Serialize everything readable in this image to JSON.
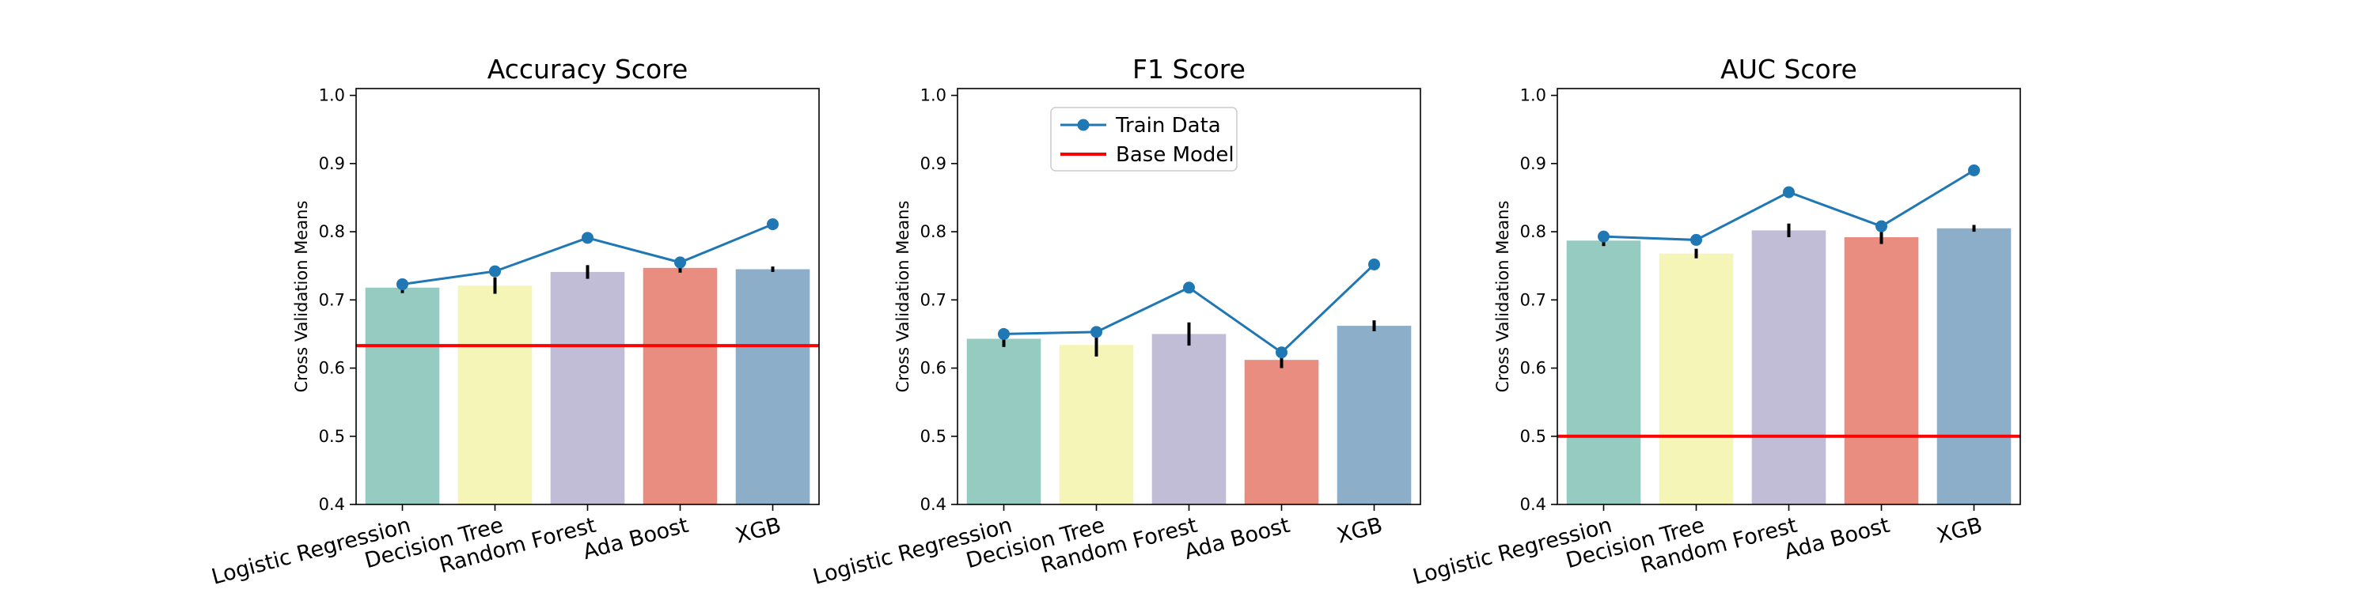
{
  "chart_data": [
    {
      "type": "bar",
      "title": "Accuracy Score",
      "ylabel": "Cross Validation Means",
      "xlabel": "",
      "ylim": [
        0.4,
        1.01
      ],
      "yticks": [
        "0.4",
        "0.5",
        "0.6",
        "0.7",
        "0.8",
        "0.9",
        "1.0"
      ],
      "categories": [
        "Logistic Regression",
        "Decision Tree",
        "Random Forest",
        "Ada Boost",
        "XGB"
      ],
      "bar_colors": [
        "#96cbc1",
        "#f5f5b8",
        "#c1bdd7",
        "#e98d81",
        "#8caec9"
      ],
      "values": [
        0.718,
        0.721,
        0.741,
        0.747,
        0.745
      ],
      "errors": [
        0.008,
        0.012,
        0.01,
        0.007,
        0.004
      ],
      "series": [
        {
          "name": "Train Data",
          "type": "line",
          "color": "#1f77b4",
          "values": [
            0.723,
            0.742,
            0.791,
            0.755,
            0.811
          ]
        },
        {
          "name": "Base Model",
          "type": "hline",
          "color": "#ff0000",
          "value": 0.633
        }
      ],
      "legend": null,
      "grid": false
    },
    {
      "type": "bar",
      "title": "F1 Score",
      "ylabel": "Cross Validation Means",
      "xlabel": "",
      "ylim": [
        0.4,
        1.01
      ],
      "yticks": [
        "0.4",
        "0.5",
        "0.6",
        "0.7",
        "0.8",
        "0.9",
        "1.0"
      ],
      "categories": [
        "Logistic Regression",
        "Decision Tree",
        "Random Forest",
        "Ada Boost",
        "XGB"
      ],
      "bar_colors": [
        "#96cbc1",
        "#f5f5b8",
        "#c1bdd7",
        "#e98d81",
        "#8caec9"
      ],
      "values": [
        0.643,
        0.634,
        0.65,
        0.612,
        0.662
      ],
      "errors": [
        0.012,
        0.017,
        0.017,
        0.012,
        0.008
      ],
      "series": [
        {
          "name": "Train Data",
          "type": "line",
          "color": "#1f77b4",
          "values": [
            0.65,
            0.653,
            0.718,
            0.623,
            0.752
          ]
        },
        {
          "name": "Base Model",
          "type": "hline",
          "color": "#ff0000",
          "value": null
        }
      ],
      "legend": {
        "placement": "upper-center",
        "entries": [
          "Train Data",
          "Base Model"
        ]
      },
      "grid": false
    },
    {
      "type": "bar",
      "title": "AUC Score",
      "ylabel": "Cross Validation Means",
      "xlabel": "",
      "ylim": [
        0.4,
        1.01
      ],
      "yticks": [
        "0.4",
        "0.5",
        "0.6",
        "0.7",
        "0.8",
        "0.9",
        "1.0"
      ],
      "categories": [
        "Logistic Regression",
        "Decision Tree",
        "Random Forest",
        "Ada Boost",
        "XGB"
      ],
      "bar_colors": [
        "#96cbc1",
        "#f5f5b8",
        "#c1bdd7",
        "#e98d81",
        "#8caec9"
      ],
      "values": [
        0.787,
        0.768,
        0.802,
        0.792,
        0.805
      ],
      "errors": [
        0.008,
        0.007,
        0.01,
        0.01,
        0.005
      ],
      "series": [
        {
          "name": "Train Data",
          "type": "line",
          "color": "#1f77b4",
          "values": [
            0.793,
            0.788,
            0.858,
            0.808,
            0.89
          ]
        },
        {
          "name": "Base Model",
          "type": "hline",
          "color": "#ff0000",
          "value": 0.5
        }
      ],
      "legend": null,
      "grid": false
    }
  ]
}
